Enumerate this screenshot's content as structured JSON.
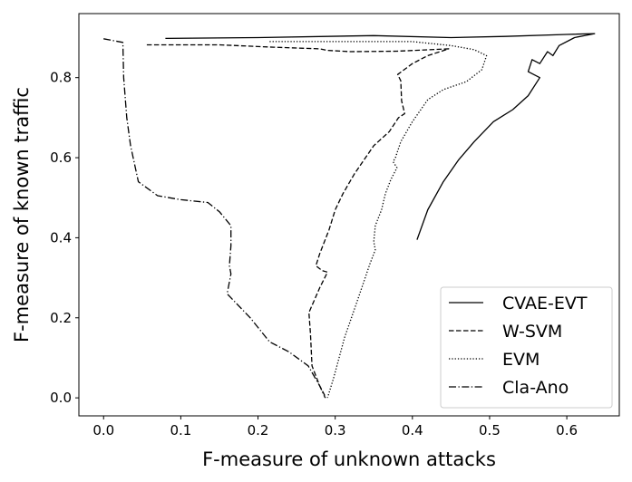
{
  "chart_data": {
    "type": "line",
    "xlabel": "F-measure of unknown attacks",
    "ylabel": "F-measure of known traffic",
    "xlim": [
      -0.032,
      0.668
    ],
    "ylim": [
      -0.045,
      0.96
    ],
    "xticks": [
      0.0,
      0.1,
      0.2,
      0.3,
      0.4,
      0.5,
      0.6
    ],
    "xtick_labels": [
      "0.0",
      "0.1",
      "0.2",
      "0.3",
      "0.4",
      "0.5",
      "0.6"
    ],
    "yticks": [
      0.0,
      0.2,
      0.4,
      0.6,
      0.8
    ],
    "ytick_labels": [
      "0.0",
      "0.2",
      "0.4",
      "0.6",
      "0.8"
    ],
    "grid": false,
    "legend_position": "bottom-right",
    "series": [
      {
        "name": "CVAE-EVT",
        "style": "solid",
        "color": "#000000",
        "points": [
          [
            0.08,
            0.898
          ],
          [
            0.2,
            0.9
          ],
          [
            0.35,
            0.905
          ],
          [
            0.45,
            0.9
          ],
          [
            0.52,
            0.903
          ],
          [
            0.6,
            0.908
          ],
          [
            0.636,
            0.91
          ],
          [
            0.61,
            0.9
          ],
          [
            0.59,
            0.88
          ],
          [
            0.582,
            0.855
          ],
          [
            0.575,
            0.865
          ],
          [
            0.565,
            0.835
          ],
          [
            0.555,
            0.845
          ],
          [
            0.55,
            0.815
          ],
          [
            0.565,
            0.8
          ],
          [
            0.55,
            0.755
          ],
          [
            0.53,
            0.72
          ],
          [
            0.505,
            0.69
          ],
          [
            0.48,
            0.64
          ],
          [
            0.46,
            0.595
          ],
          [
            0.44,
            0.54
          ],
          [
            0.42,
            0.47
          ],
          [
            0.406,
            0.395
          ]
        ]
      },
      {
        "name": "W-SVM",
        "style": "dashed",
        "color": "#000000",
        "points": [
          [
            0.056,
            0.882
          ],
          [
            0.15,
            0.882
          ],
          [
            0.22,
            0.876
          ],
          [
            0.28,
            0.872
          ],
          [
            0.29,
            0.868
          ],
          [
            0.32,
            0.865
          ],
          [
            0.38,
            0.866
          ],
          [
            0.447,
            0.872
          ],
          [
            0.42,
            0.855
          ],
          [
            0.4,
            0.835
          ],
          [
            0.381,
            0.808
          ],
          [
            0.385,
            0.792
          ],
          [
            0.386,
            0.742
          ],
          [
            0.39,
            0.71
          ],
          [
            0.382,
            0.7
          ],
          [
            0.37,
            0.665
          ],
          [
            0.35,
            0.63
          ],
          [
            0.325,
            0.56
          ],
          [
            0.31,
            0.51
          ],
          [
            0.3,
            0.47
          ],
          [
            0.292,
            0.42
          ],
          [
            0.285,
            0.385
          ],
          [
            0.28,
            0.36
          ],
          [
            0.275,
            0.33
          ],
          [
            0.283,
            0.318
          ],
          [
            0.29,
            0.314
          ],
          [
            0.28,
            0.275
          ],
          [
            0.266,
            0.213
          ],
          [
            0.268,
            0.16
          ],
          [
            0.27,
            0.08
          ],
          [
            0.28,
            0.03
          ],
          [
            0.288,
            0.0
          ]
        ]
      },
      {
        "name": "EVM",
        "style": "dotted",
        "color": "#000000",
        "points": [
          [
            0.215,
            0.89
          ],
          [
            0.3,
            0.89
          ],
          [
            0.4,
            0.89
          ],
          [
            0.45,
            0.88
          ],
          [
            0.48,
            0.87
          ],
          [
            0.496,
            0.855
          ],
          [
            0.49,
            0.82
          ],
          [
            0.47,
            0.79
          ],
          [
            0.44,
            0.77
          ],
          [
            0.42,
            0.745
          ],
          [
            0.4,
            0.69
          ],
          [
            0.385,
            0.64
          ],
          [
            0.378,
            0.6
          ],
          [
            0.375,
            0.59
          ],
          [
            0.38,
            0.575
          ],
          [
            0.372,
            0.545
          ],
          [
            0.365,
            0.51
          ],
          [
            0.36,
            0.47
          ],
          [
            0.352,
            0.43
          ],
          [
            0.35,
            0.39
          ],
          [
            0.352,
            0.37
          ],
          [
            0.345,
            0.335
          ],
          [
            0.33,
            0.25
          ],
          [
            0.312,
            0.15
          ],
          [
            0.298,
            0.05
          ],
          [
            0.29,
            0.0
          ]
        ]
      },
      {
        "name": "Cla-Ano",
        "style": "dashdot",
        "color": "#000000",
        "points": [
          [
            0.0,
            0.897
          ],
          [
            0.025,
            0.888
          ],
          [
            0.026,
            0.8
          ],
          [
            0.03,
            0.7
          ],
          [
            0.035,
            0.63
          ],
          [
            0.045,
            0.54
          ],
          [
            0.07,
            0.505
          ],
          [
            0.1,
            0.495
          ],
          [
            0.135,
            0.488
          ],
          [
            0.15,
            0.465
          ],
          [
            0.165,
            0.43
          ],
          [
            0.165,
            0.38
          ],
          [
            0.163,
            0.33
          ],
          [
            0.165,
            0.31
          ],
          [
            0.16,
            0.26
          ],
          [
            0.19,
            0.2
          ],
          [
            0.215,
            0.14
          ],
          [
            0.24,
            0.115
          ],
          [
            0.265,
            0.08
          ],
          [
            0.28,
            0.03
          ],
          [
            0.287,
            0.0
          ]
        ]
      }
    ]
  }
}
